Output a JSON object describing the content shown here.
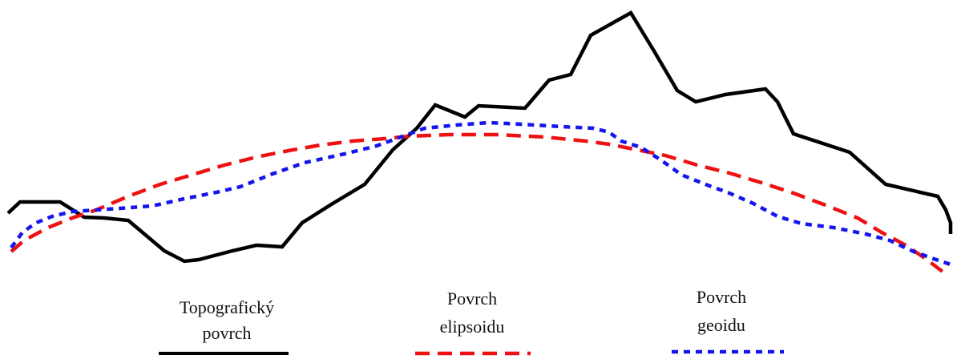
{
  "colors": {
    "topography": "#000000",
    "ellipsoid": "#ee1111",
    "geoid": "#1414ee"
  },
  "legend": {
    "topography": {
      "line1": "Topografický",
      "line2": "povrch"
    },
    "ellipsoid": {
      "line1": "Povrch",
      "line2": "elipsoidu"
    },
    "geoid": {
      "line1": "Povrch",
      "line2": "geoidu"
    }
  }
}
